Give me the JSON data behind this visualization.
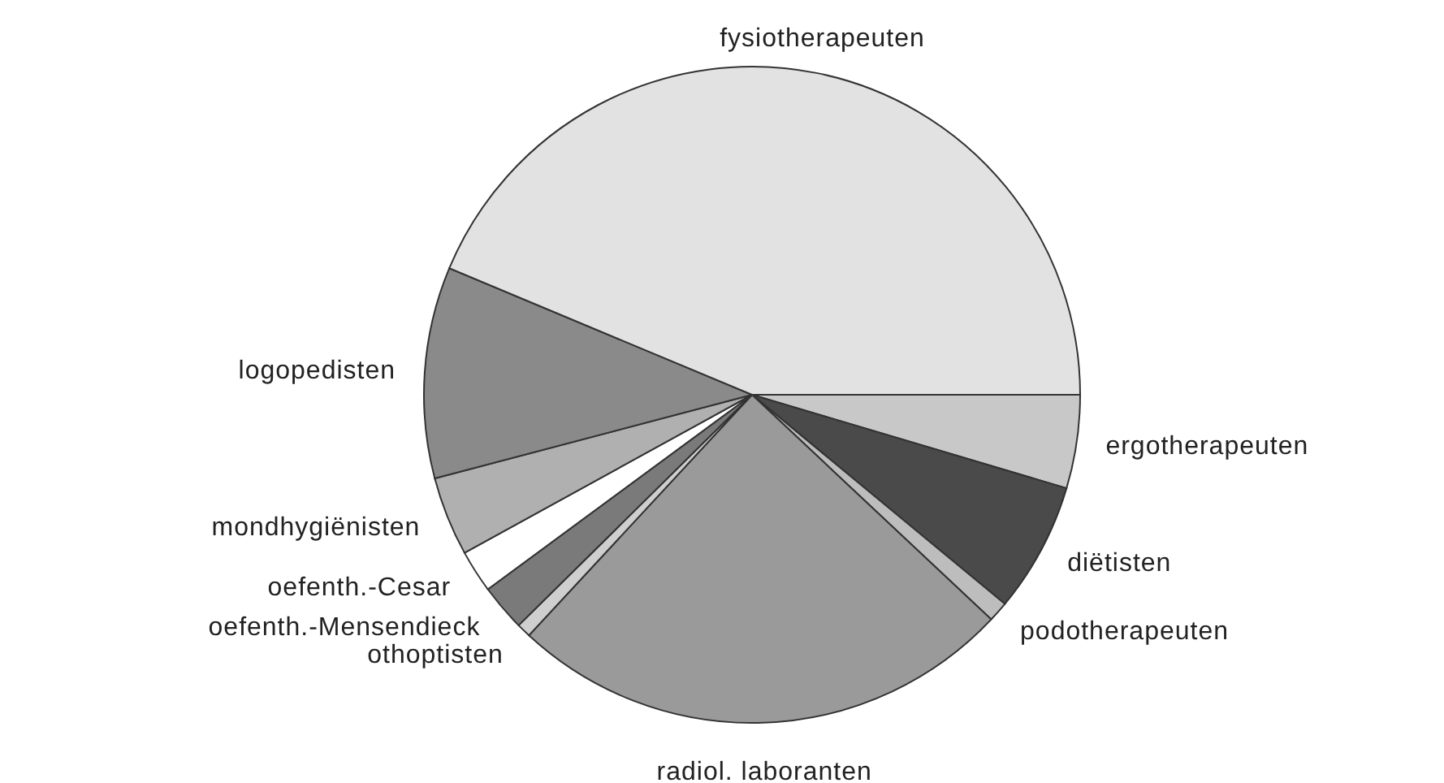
{
  "chart_data": {
    "type": "pie",
    "categories": [
      "ergotherapeuten",
      "diëtisten",
      "podotherapeuten",
      "radiol. laboranten",
      "othoptisten",
      "oefenth.-Mensendieck",
      "oefenth.-Cesar",
      "mondhygiënisten",
      "logopedisten",
      "fysiotherapeuten"
    ],
    "values": [
      4.6,
      6.4,
      1.0,
      24.9,
      0.7,
      2.3,
      2.1,
      3.9,
      10.4,
      43.7
    ],
    "colors": [
      "#c8c8c8",
      "#4a4a4a",
      "#bdbdbd",
      "#9a9a9a",
      "#cfcfcf",
      "#7a7a7a",
      "#ffffff",
      "#b0b0b0",
      "#8a8a8a",
      "#e2e2e2"
    ]
  }
}
